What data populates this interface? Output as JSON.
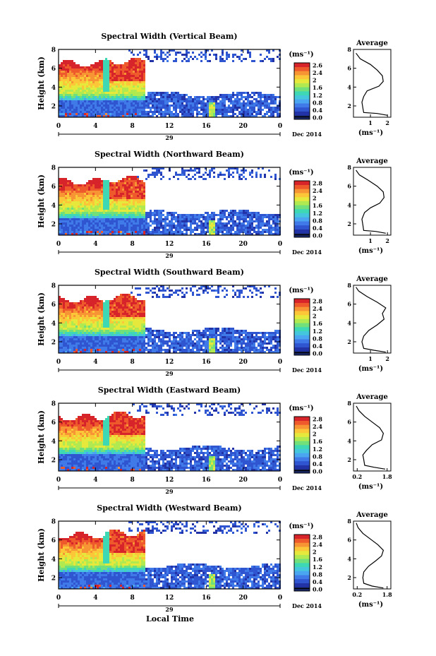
{
  "figure": {
    "ylabel": "Height (km)",
    "xlabel": "Local Time",
    "cbar_unit": "(ms⁻¹)",
    "avg_title": "Average",
    "avg_unit": "(ms⁻¹)",
    "date_day": "29",
    "date_label": "Dec 2014",
    "colors": [
      "#1a2a6c",
      "#2233a8",
      "#2f55d0",
      "#3f7ae8",
      "#4aa6f0",
      "#44c6dc",
      "#3fd8b4",
      "#72e07a",
      "#b0ea50",
      "#e6e83c",
      "#fbc637",
      "#f79433",
      "#ef5a2c",
      "#d7242a"
    ]
  },
  "chart_data": [
    {
      "type": "heatmap",
      "title": "Spectral Width (Vertical Beam)",
      "x_ticks": [
        "0",
        "4",
        "8",
        "12",
        "16",
        "20",
        "0"
      ],
      "y_ticks": [
        "2",
        "4",
        "6",
        "8"
      ],
      "ylim": [
        0.8,
        8
      ],
      "cbar_ticks": [
        "2.6",
        "2.4",
        "2",
        "1.6",
        "1.2",
        "0.8",
        "0.4",
        "0.0"
      ],
      "avg_x_ticks": [
        "1",
        "2"
      ],
      "avg_xlim": [
        0,
        2.2
      ],
      "avg_profile": [
        [
          2.0,
          1.0
        ],
        [
          1.4,
          1.2
        ],
        [
          0.6,
          1.3
        ],
        [
          0.55,
          1.8
        ],
        [
          0.5,
          2.4
        ],
        [
          0.6,
          3.0
        ],
        [
          0.8,
          3.6
        ],
        [
          1.5,
          4.1
        ],
        [
          1.75,
          4.6
        ],
        [
          1.7,
          5.2
        ],
        [
          1.4,
          5.8
        ],
        [
          1.0,
          6.4
        ],
        [
          0.4,
          7.0
        ],
        [
          0.15,
          7.6
        ]
      ]
    },
    {
      "type": "heatmap",
      "title": "Spectral Width (Northward Beam)",
      "x_ticks": [
        "0",
        "4",
        "8",
        "12",
        "16",
        "20",
        "0"
      ],
      "y_ticks": [
        "2",
        "4",
        "6",
        "8"
      ],
      "ylim": [
        0.8,
        8
      ],
      "cbar_ticks": [
        "2.8",
        "2.4",
        "2",
        "1.6",
        "1.2",
        "0.8",
        "0.4",
        "0.0"
      ],
      "avg_x_ticks": [
        "1",
        "2"
      ],
      "avg_xlim": [
        0,
        2.2
      ],
      "avg_profile": [
        [
          1.9,
          1.0
        ],
        [
          1.3,
          1.2
        ],
        [
          0.6,
          1.3
        ],
        [
          0.55,
          1.9
        ],
        [
          0.5,
          2.5
        ],
        [
          0.65,
          3.2
        ],
        [
          1.0,
          3.7
        ],
        [
          1.55,
          4.2
        ],
        [
          1.8,
          4.8
        ],
        [
          1.75,
          5.4
        ],
        [
          1.4,
          6.0
        ],
        [
          0.9,
          6.6
        ],
        [
          0.35,
          7.2
        ],
        [
          0.15,
          7.7
        ]
      ]
    },
    {
      "type": "heatmap",
      "title": "Spectral Width (Southward Beam)",
      "x_ticks": [
        "0",
        "4",
        "8",
        "12",
        "16",
        "20",
        "0"
      ],
      "y_ticks": [
        "2",
        "4",
        "6",
        "8"
      ],
      "ylim": [
        0.8,
        8
      ],
      "cbar_ticks": [
        "2.8",
        "2.4",
        "2",
        "1.6",
        "1.2",
        "0.8",
        "0.4",
        "0.0"
      ],
      "avg_x_ticks": [
        "1",
        "2"
      ],
      "avg_xlim": [
        0,
        2.2
      ],
      "avg_profile": [
        [
          1.9,
          0.9
        ],
        [
          1.2,
          1.1
        ],
        [
          0.6,
          1.3
        ],
        [
          0.5,
          2.0
        ],
        [
          0.6,
          2.6
        ],
        [
          0.9,
          3.2
        ],
        [
          1.4,
          3.8
        ],
        [
          1.8,
          4.4
        ],
        [
          1.7,
          5.0
        ],
        [
          1.9,
          5.6
        ],
        [
          1.4,
          6.2
        ],
        [
          0.8,
          6.8
        ],
        [
          0.3,
          7.4
        ],
        [
          0.15,
          7.8
        ]
      ]
    },
    {
      "type": "heatmap",
      "title": "Spectral Width (Eastward Beam)",
      "x_ticks": [
        "0",
        "4",
        "8",
        "12",
        "16",
        "20",
        "0"
      ],
      "y_ticks": [
        "2",
        "4",
        "6",
        "8"
      ],
      "ylim": [
        0.8,
        8
      ],
      "cbar_ticks": [
        "2.8",
        "2.4",
        "2",
        "1.6",
        "1.2",
        "0.8",
        "0.4",
        "0.0"
      ],
      "avg_x_ticks": [
        "0.2",
        "1.8"
      ],
      "avg_xlim": [
        0,
        2.0
      ],
      "avg_profile": [
        [
          1.7,
          1.0
        ],
        [
          1.1,
          1.2
        ],
        [
          0.6,
          1.4
        ],
        [
          0.55,
          2.0
        ],
        [
          0.5,
          2.5
        ],
        [
          0.7,
          3.0
        ],
        [
          1.0,
          3.6
        ],
        [
          1.5,
          4.1
        ],
        [
          1.6,
          4.8
        ],
        [
          1.4,
          5.4
        ],
        [
          1.0,
          6.0
        ],
        [
          0.6,
          6.6
        ],
        [
          0.3,
          7.2
        ],
        [
          0.15,
          7.7
        ]
      ]
    },
    {
      "type": "heatmap",
      "title": "Spectral Width (Westward Beam)",
      "x_ticks": [
        "0",
        "4",
        "8",
        "12",
        "16",
        "20",
        "0"
      ],
      "y_ticks": [
        "2",
        "4",
        "6",
        "8"
      ],
      "ylim": [
        0.8,
        8
      ],
      "cbar_ticks": [
        "2.8",
        "2.4",
        "2",
        "1.6",
        "1.2",
        "0.8",
        "0.4",
        "0.0"
      ],
      "avg_x_ticks": [
        "0.2",
        "1.8"
      ],
      "avg_xlim": [
        0,
        2.0
      ],
      "avg_profile": [
        [
          1.6,
          0.9
        ],
        [
          1.0,
          1.1
        ],
        [
          0.55,
          1.4
        ],
        [
          0.5,
          2.0
        ],
        [
          0.55,
          2.6
        ],
        [
          0.8,
          3.2
        ],
        [
          1.2,
          3.8
        ],
        [
          1.5,
          4.3
        ],
        [
          1.6,
          4.9
        ],
        [
          1.3,
          5.5
        ],
        [
          0.9,
          6.1
        ],
        [
          0.5,
          6.7
        ],
        [
          0.25,
          7.3
        ],
        [
          0.15,
          7.8
        ]
      ]
    }
  ]
}
